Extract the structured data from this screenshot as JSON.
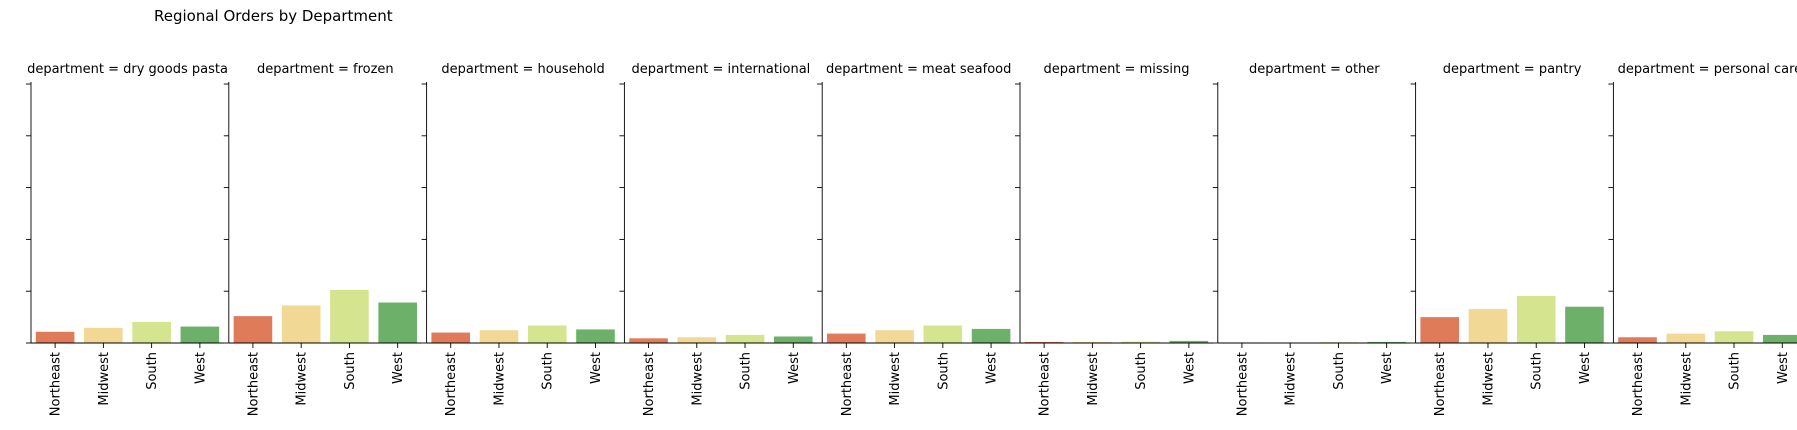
{
  "chart_data": {
    "type": "bar",
    "title": "Regional Orders by Department",
    "facet_label_prefix": "department = ",
    "categories": [
      "Northeast",
      "Midwest",
      "South",
      "West"
    ],
    "colors": [
      "#e07b5a",
      "#f2d895",
      "#d5e48f",
      "#6db069"
    ],
    "ylim": [
      0,
      1
    ],
    "y_ticks_count": 6,
    "xlabel": "",
    "ylabel": "",
    "grid": false,
    "facets": [
      {
        "department": "dry goods pasta",
        "values": [
          0.043,
          0.058,
          0.081,
          0.063
        ]
      },
      {
        "department": "frozen",
        "values": [
          0.103,
          0.144,
          0.203,
          0.155
        ]
      },
      {
        "department": "household",
        "values": [
          0.04,
          0.049,
          0.067,
          0.052
        ]
      },
      {
        "department": "international",
        "values": [
          0.018,
          0.022,
          0.031,
          0.025
        ]
      },
      {
        "department": "meat seafood",
        "values": [
          0.036,
          0.049,
          0.067,
          0.054
        ]
      },
      {
        "department": "missing",
        "values": [
          0.004,
          0.004,
          0.005,
          0.008
        ]
      },
      {
        "department": "other",
        "values": [
          0.002,
          0.002,
          0.003,
          0.004
        ]
      },
      {
        "department": "pantry",
        "values": [
          0.099,
          0.13,
          0.18,
          0.139
        ]
      },
      {
        "department": "personal care",
        "values": [
          0.022,
          0.036,
          0.045,
          0.031
        ]
      }
    ]
  }
}
